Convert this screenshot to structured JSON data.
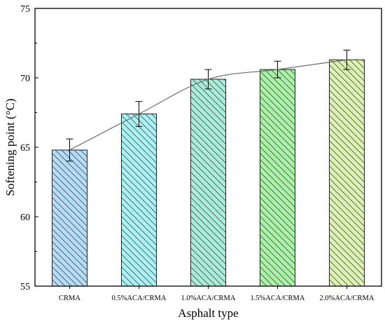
{
  "chart_data": {
    "type": "bar",
    "xlabel": "Asphalt type",
    "ylabel": "Softening point (°C)",
    "ylim": [
      55,
      75
    ],
    "yticks": [
      "55",
      "60",
      "65",
      "70",
      "75"
    ],
    "categories": [
      "CRMA",
      "0.5%ACA/CRMA",
      "1.0%ACA/CRMA",
      "1.5%ACA/CRMA",
      "2.0%ACA/CRMA"
    ],
    "values": [
      64.8,
      67.4,
      69.9,
      70.6,
      71.3
    ],
    "errors": [
      0.8,
      0.9,
      0.7,
      0.6,
      0.7
    ],
    "bar_colors": [
      "#b5dcf6",
      "#a9f1f2",
      "#a9ecd8",
      "#a9f1a6",
      "#dcf2b2"
    ],
    "trend_line": true,
    "hatch": "diagonal",
    "grid": false,
    "legend": "none"
  }
}
